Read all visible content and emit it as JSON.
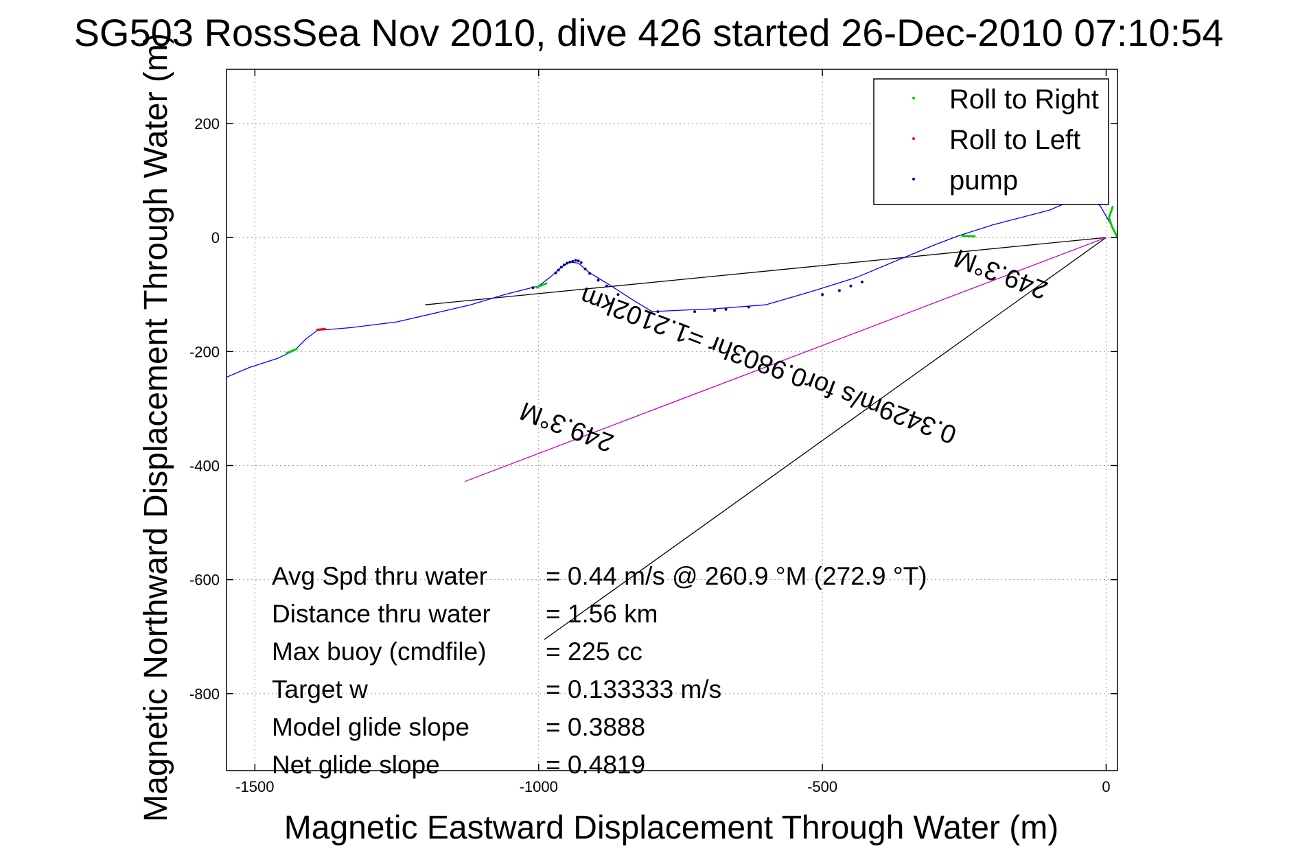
{
  "chart_data": {
    "type": "line",
    "title": "SG503 RossSea Nov 2010, dive 426 started 26-Dec-2010 07:10:54",
    "xlabel": "Magnetic Eastward Displacement Through Water (m)",
    "ylabel": "Magnetic Northward Displacement Through Water (m)",
    "xlim": [
      -1550,
      20
    ],
    "ylim": [
      -935,
      295
    ],
    "xticks": [
      -1500,
      -1000,
      -500,
      0
    ],
    "xtick_labels": [
      "-1500",
      "-1000",
      "-500",
      "0"
    ],
    "yticks": [
      200,
      0,
      -200,
      -400,
      -600,
      -800
    ],
    "ytick_labels": [
      "200",
      "0",
      "-200",
      "-400",
      "-600",
      "-800"
    ],
    "grid": true,
    "legend": {
      "placement": "top-right",
      "entries": [
        {
          "label": "Roll to Right",
          "color": "#00cc00"
        },
        {
          "label": "Roll to Left",
          "color": "#ff0000"
        },
        {
          "label": "pump",
          "color": "#000080"
        }
      ]
    },
    "track": {
      "color": "#0000ff",
      "points": [
        [
          20,
          0
        ],
        [
          10,
          20
        ],
        [
          -10,
          55
        ],
        [
          -30,
          70
        ],
        [
          -60,
          65
        ],
        [
          -100,
          48
        ],
        [
          -150,
          35
        ],
        [
          -200,
          22
        ],
        [
          -260,
          3
        ],
        [
          -300,
          -12
        ],
        [
          -380,
          -45
        ],
        [
          -440,
          -70
        ],
        [
          -520,
          -95
        ],
        [
          -600,
          -118
        ],
        [
          -690,
          -125
        ],
        [
          -760,
          -128
        ],
        [
          -800,
          -130
        ],
        [
          -830,
          -112
        ],
        [
          -880,
          -80
        ],
        [
          -910,
          -62
        ],
        [
          -930,
          -45
        ],
        [
          -945,
          -43
        ],
        [
          -960,
          -52
        ],
        [
          -980,
          -70
        ],
        [
          -1000,
          -85
        ],
        [
          -1060,
          -100
        ],
        [
          -1120,
          -118
        ],
        [
          -1180,
          -132
        ],
        [
          -1250,
          -148
        ],
        [
          -1330,
          -158
        ],
        [
          -1390,
          -163
        ],
        [
          -1410,
          -178
        ],
        [
          -1430,
          -198
        ],
        [
          -1460,
          -212
        ],
        [
          -1510,
          -228
        ],
        [
          -1550,
          -245
        ]
      ]
    },
    "roll_right_segments": [
      [
        [
          20,
          0
        ],
        [
          10,
          20
        ],
        [
          5,
          35
        ],
        [
          12,
          55
        ]
      ],
      [
        [
          -230,
          2
        ],
        [
          -255,
          3
        ]
      ],
      [
        [
          -985,
          -80
        ],
        [
          -1005,
          -88
        ]
      ],
      [
        [
          -1425,
          -195
        ],
        [
          -1445,
          -203
        ]
      ]
    ],
    "roll_left_segments": [
      [
        [
          -1375,
          -160
        ],
        [
          -1392,
          -162
        ]
      ]
    ],
    "pump_points": [
      [
        -935,
        -40
      ],
      [
        -930,
        -41
      ],
      [
        -925,
        -44
      ],
      [
        -940,
        -42
      ],
      [
        -945,
        -43
      ],
      [
        -950,
        -45
      ],
      [
        -955,
        -48
      ],
      [
        -960,
        -52
      ],
      [
        -965,
        -57
      ],
      [
        -970,
        -62
      ],
      [
        -918,
        -55
      ],
      [
        -910,
        -63
      ],
      [
        -895,
        -75
      ],
      [
        -880,
        -85
      ],
      [
        -860,
        -100
      ],
      [
        -790,
        -130
      ],
      [
        -725,
        -130
      ],
      [
        -690,
        -128
      ],
      [
        -670,
        -126
      ],
      [
        -630,
        -122
      ],
      [
        -500,
        -100
      ],
      [
        -470,
        -93
      ],
      [
        -450,
        -85
      ],
      [
        -430,
        -78
      ],
      [
        -1010,
        -88
      ]
    ],
    "lines": [
      {
        "name": "heading line",
        "color": "#000000",
        "points": [
          [
            -1200,
            -118
          ],
          [
            0,
            0
          ]
        ]
      },
      {
        "name": "waypoint line",
        "color": "#000000",
        "points": [
          [
            -990,
            -705
          ],
          [
            0,
            0
          ]
        ]
      },
      {
        "name": "current line",
        "color": "#cc00cc",
        "points": [
          [
            -1130,
            -428
          ],
          [
            0,
            0
          ]
        ]
      }
    ],
    "annotations": [
      {
        "text": "0.3429m/s for0.9803hr =1.2102km",
        "x": -590,
        "y": -210,
        "rotate": 200.7
      },
      {
        "text": "249.3°M",
        "x": -945,
        "y": -318,
        "rotate": 200.7
      },
      {
        "text": "249.3°M",
        "x": -180,
        "y": -50,
        "rotate": 200.7
      }
    ],
    "stats": [
      {
        "label": "Avg Spd thru water",
        "value": "=  0.44 m/s @ 260.9 °M (272.9 °T)"
      },
      {
        "label": "Distance thru water",
        "value": "=  1.56 km"
      },
      {
        "label": "Max buoy (cmdfile)",
        "value": "= 225 cc"
      },
      {
        "label": "Target w",
        "value": "= 0.133333 m/s"
      },
      {
        "label": "Model glide slope",
        "value": "= 0.3888"
      },
      {
        "label": "Net glide slope",
        "value": "= 0.4819"
      }
    ]
  }
}
